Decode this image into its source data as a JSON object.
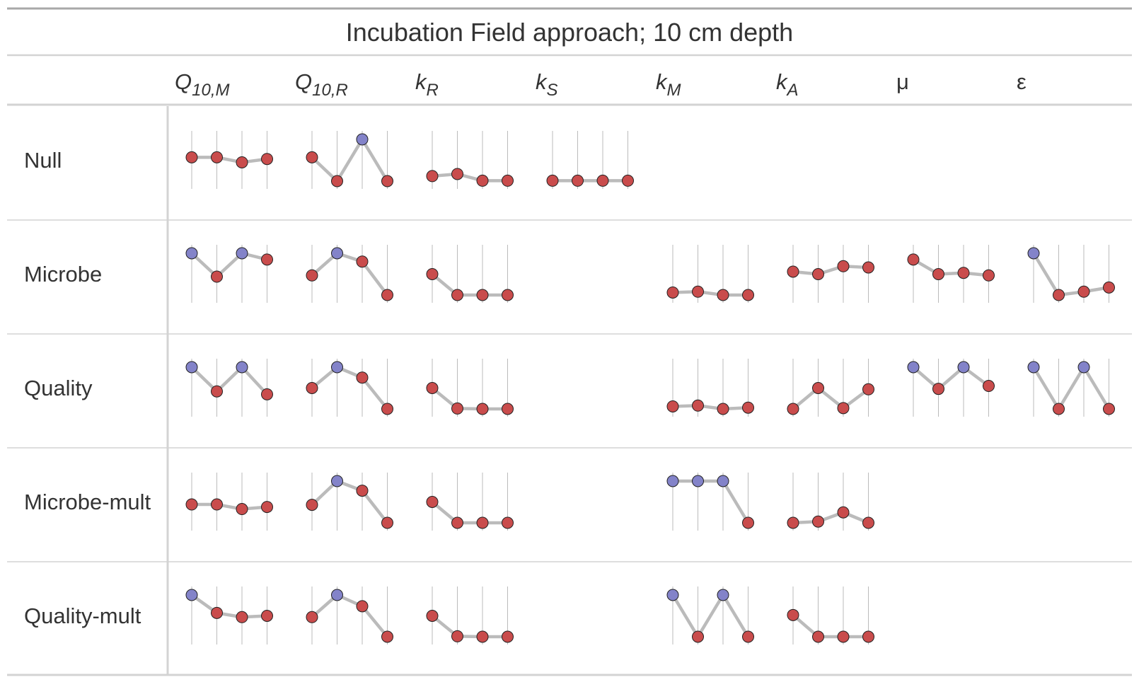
{
  "title": "Incubation Field approach; 10 cm depth",
  "colors": {
    "high": "#8383c9",
    "low": "#c94c4c",
    "connector": "#bbbbbb",
    "guide": "#aaaaaa",
    "rule": "#d3d3d3",
    "top_rule": "#a8a8a8"
  },
  "columns": [
    {
      "key": "q10m",
      "base": "Q",
      "sub": "10,M",
      "italic": true
    },
    {
      "key": "q10r",
      "base": "Q",
      "sub": "10,R",
      "italic": true
    },
    {
      "key": "kr",
      "base": "k",
      "sub": "R",
      "italic": true
    },
    {
      "key": "ks",
      "base": "k",
      "sub": "S",
      "italic": true
    },
    {
      "key": "km",
      "base": "k",
      "sub": "M",
      "italic": true
    },
    {
      "key": "ka",
      "base": "k",
      "sub": "A",
      "italic": true
    },
    {
      "key": "mu",
      "base": "μ",
      "sub": "",
      "italic": false
    },
    {
      "key": "eps",
      "base": "ε",
      "sub": "",
      "italic": false
    }
  ],
  "rows": [
    {
      "label": "Null"
    },
    {
      "label": "Microbe"
    },
    {
      "label": "Quality"
    },
    {
      "label": "Microbe-mult"
    },
    {
      "label": "Quality-mult"
    }
  ],
  "chart_data": {
    "type": "table",
    "value_scale": "relative, 0 = lowest and 1 = highest within each sparkline cell",
    "point_highlight": "the highest value in a cell is drawn in the high colour, all others in the low colour",
    "cells": [
      [
        [
          0.57,
          0.57,
          0.45,
          0.53
        ],
        [
          0.57,
          0.0,
          1.0,
          0.0
        ],
        [
          0.12,
          0.17,
          0.01,
          0.01
        ],
        [
          0.01,
          0.01,
          0.01,
          0.01
        ],
        null,
        null,
        null,
        null
      ],
      [
        [
          1.0,
          0.44,
          1.0,
          0.85
        ],
        [
          0.47,
          1.0,
          0.8,
          0.0
        ],
        [
          0.5,
          0.0,
          0.0,
          0.0
        ],
        null,
        [
          0.06,
          0.08,
          0.0,
          0.0
        ],
        [
          0.56,
          0.5,
          0.69,
          0.66
        ],
        [
          0.85,
          0.5,
          0.53,
          0.47
        ],
        [
          1.0,
          0.0,
          0.08,
          0.18
        ]
      ],
      [
        [
          1.0,
          0.42,
          1.0,
          0.35
        ],
        [
          0.5,
          1.0,
          0.75,
          0.0
        ],
        [
          0.5,
          0.01,
          0.0,
          0.0
        ],
        null,
        [
          0.06,
          0.08,
          0.0,
          0.03
        ],
        [
          0.0,
          0.5,
          0.02,
          0.47
        ],
        [
          1.0,
          0.48,
          1.0,
          0.55
        ],
        [
          1.0,
          0.0,
          1.0,
          0.0
        ]
      ],
      [
        [
          0.44,
          0.44,
          0.33,
          0.38
        ],
        [
          0.43,
          1.0,
          0.77,
          0.0
        ],
        [
          0.5,
          0.0,
          0.0,
          0.0
        ],
        null,
        [
          1.0,
          1.0,
          1.0,
          0.0
        ],
        [
          0.0,
          0.03,
          0.25,
          0.0
        ],
        null,
        null
      ],
      [
        [
          1.0,
          0.57,
          0.47,
          0.5
        ],
        [
          0.47,
          1.0,
          0.73,
          0.0
        ],
        [
          0.5,
          0.01,
          0.0,
          0.0
        ],
        null,
        [
          1.0,
          0.0,
          1.0,
          0.0
        ],
        [
          0.52,
          0.0,
          0.0,
          0.0
        ],
        null,
        null
      ]
    ]
  }
}
